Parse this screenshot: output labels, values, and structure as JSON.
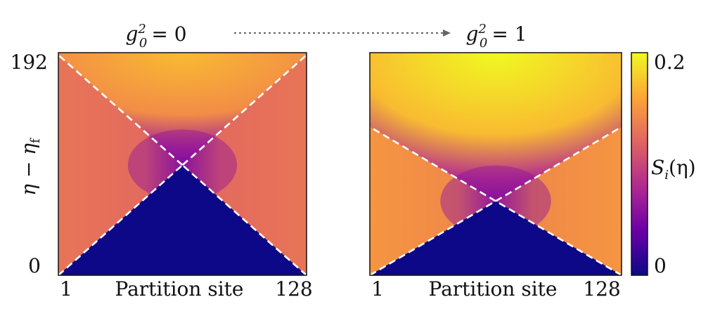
{
  "chart_data": [
    {
      "type": "heatmap",
      "title": "g_0^2 = 0",
      "title_parts": {
        "var": "g",
        "sub": "0",
        "sup": "2",
        "rhs": "= 0"
      },
      "xlabel": "Partition site",
      "ylabel": "η − η_f",
      "ylabel_parts": {
        "main": "η − η",
        "sub": "f"
      },
      "x_ticks": [
        "1",
        "128"
      ],
      "y_ticks": [
        "192",
        "0"
      ],
      "xlim": [
        1,
        128
      ],
      "ylim": [
        0,
        192
      ],
      "light_cone_apex": {
        "site": 64.5,
        "eta": 95
      },
      "upper_region_level": 0.17,
      "side_region_level": 0.13,
      "lower_region_level": 0.0,
      "dashed_lines": "light cone"
    },
    {
      "type": "heatmap",
      "title": "g_0^2 = 1",
      "title_parts": {
        "var": "g",
        "sub": "0",
        "sup": "2",
        "rhs": "= 1"
      },
      "xlabel": "Partition site",
      "x_ticks": [
        "1",
        "128"
      ],
      "xlim": [
        1,
        128
      ],
      "ylim": [
        0,
        192
      ],
      "light_cone_apex": {
        "site": 64.5,
        "eta": 64
      },
      "upper_region_level": 0.2,
      "side_region_level": 0.15,
      "lower_region_level": 0.0,
      "dashed_lines": "light cone"
    }
  ],
  "colorbar": {
    "label": "S_i(η)",
    "label_parts": {
      "main": "S",
      "sub": "i",
      "tail": "(η)"
    },
    "min_label": "0",
    "max_label": "0.2",
    "range": [
      0,
      0.2
    ],
    "colormap": "plasma",
    "colors": [
      "#0d0887",
      "#6a00a8",
      "#b12a90",
      "#e16462",
      "#fca636",
      "#f0f921"
    ]
  },
  "arrow": {
    "style": "dotted",
    "color": "#666666"
  }
}
